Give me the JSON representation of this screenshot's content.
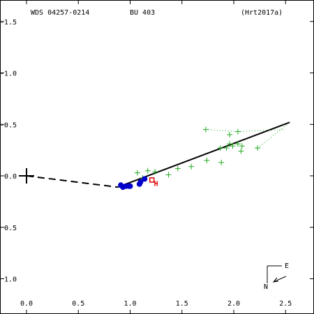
{
  "header": {
    "wds_id": "WDS 04257-0214",
    "discoverer": "BU  403",
    "reference": "(Hrt2017a)"
  },
  "chart_data": {
    "type": "scatter",
    "title": "",
    "xlabel": "",
    "ylabel": "",
    "xlim": [
      -0.25,
      2.75
    ],
    "ylim": [
      1.7,
      -1.3
    ],
    "x_ticks": [
      0.0,
      0.5,
      1.0,
      1.5,
      2.0,
      2.5
    ],
    "x_tick_labels": [
      "0.0",
      "0.5",
      "1.0",
      "1.5",
      "2.0",
      "2.5"
    ],
    "y_ticks": [
      -1.5,
      -1.0,
      -0.5,
      0.0,
      0.5,
      1.0
    ],
    "y_tick_labels": [
      "-1.5",
      "-1.0",
      "-0.5",
      "0.0",
      "0.5",
      "1.0"
    ],
    "primary": {
      "x": 0.0,
      "y": 0.0
    },
    "orbit_dashed": [
      [
        0.0,
        0.0
      ],
      [
        0.88,
        0.11
      ]
    ],
    "orbit_solid": [
      [
        0.88,
        0.11
      ],
      [
        2.54,
        -0.52
      ]
    ],
    "series": [
      {
        "marker": "plus",
        "color": "#22aa22",
        "points": [
          [
            1.73,
            -0.45
          ],
          [
            2.04,
            -0.43
          ],
          [
            1.96,
            -0.4
          ],
          [
            1.96,
            -0.31
          ],
          [
            2.04,
            -0.31
          ],
          [
            1.99,
            -0.29
          ],
          [
            2.08,
            -0.29
          ],
          [
            2.23,
            -0.27
          ],
          [
            1.87,
            -0.27
          ],
          [
            1.93,
            -0.27
          ],
          [
            2.07,
            -0.24
          ],
          [
            1.74,
            -0.15
          ],
          [
            1.88,
            -0.13
          ],
          [
            1.59,
            -0.09
          ],
          [
            1.46,
            -0.07
          ],
          [
            1.37,
            -0.01
          ],
          [
            1.24,
            -0.04
          ],
          [
            1.17,
            -0.05
          ],
          [
            1.07,
            -0.03
          ],
          [
            1.12,
            0.02
          ]
        ]
      },
      {
        "marker": "circle",
        "color": "#0000cc",
        "points": [
          [
            0.91,
            0.09
          ],
          [
            0.93,
            0.11
          ],
          [
            0.96,
            0.1
          ],
          [
            0.99,
            0.1
          ],
          [
            1.0,
            0.1
          ],
          [
            1.09,
            0.08
          ],
          [
            1.1,
            0.06
          ],
          [
            1.14,
            0.03
          ]
        ]
      },
      {
        "marker": "square",
        "color": "#dd0000",
        "points": [
          [
            1.21,
            0.04
          ]
        ]
      }
    ],
    "annotations": [
      {
        "text": "H",
        "x": 1.25,
        "y": 0.07,
        "color": "#dd0000"
      }
    ],
    "dotted_lines": [
      {
        "from": [
          1.73,
          -0.45
        ],
        "to": [
          2.04,
          -0.43
        ]
      },
      {
        "from": [
          2.04,
          -0.43
        ],
        "to": [
          2.5,
          -0.45
        ]
      },
      {
        "from": [
          2.23,
          -0.27
        ],
        "to": [
          2.54,
          -0.52
        ]
      }
    ],
    "compass": {
      "east": "E",
      "north": "N"
    }
  }
}
